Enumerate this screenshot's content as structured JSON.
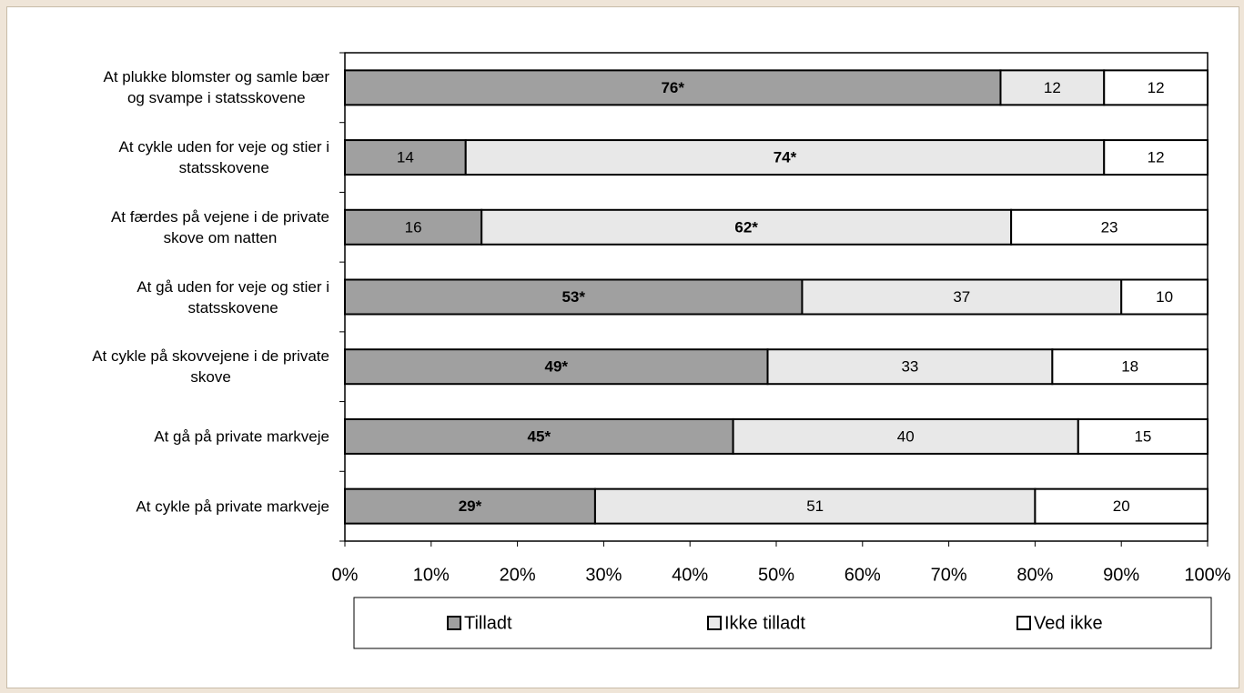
{
  "chart_data": {
    "type": "bar",
    "orientation": "horizontal",
    "stacked": "percent",
    "categories": [
      "At plukke blomster og samle bær\nog svampe i statsskovene",
      "At cykle uden for veje og stier i\nstatsskovene",
      "At færdes på vejene i de private\nskove om natten",
      "At gå uden for veje og stier i\nstatsskovene",
      "At cykle på skovvejene i de private\nskove",
      "At gå på private markveje",
      "At cykle på private markveje"
    ],
    "series": [
      {
        "name": "Tilladt",
        "color": "#a0a0a0",
        "values": [
          76,
          14,
          16,
          53,
          49,
          45,
          29
        ],
        "value_labels": [
          "76*",
          "14",
          "16",
          "53*",
          "49*",
          "45*",
          "29*"
        ]
      },
      {
        "name": "Ikke tilladt",
        "color": "#e8e8e8",
        "values": [
          12,
          74,
          62,
          37,
          33,
          40,
          51
        ],
        "value_labels": [
          "12",
          "74*",
          "62*",
          "37",
          "33",
          "40",
          "51"
        ]
      },
      {
        "name": "Ved ikke",
        "color": "#ffffff",
        "values": [
          12,
          12,
          23,
          10,
          18,
          15,
          20
        ]
      }
    ],
    "xlim": [
      0,
      100
    ],
    "xticks": [
      {
        "value": 0,
        "label": "0%"
      },
      {
        "value": 10,
        "label": "10%"
      },
      {
        "value": 20,
        "label": "20%"
      },
      {
        "value": 30,
        "label": "30%"
      },
      {
        "value": 40,
        "label": "40%"
      },
      {
        "value": 50,
        "label": "50%"
      },
      {
        "value": 60,
        "label": "60%"
      },
      {
        "value": 70,
        "label": "70%"
      },
      {
        "value": 80,
        "label": "80%"
      },
      {
        "value": 90,
        "label": "90%"
      },
      {
        "value": 100,
        "label": "100%"
      }
    ],
    "legend": "bottom"
  }
}
